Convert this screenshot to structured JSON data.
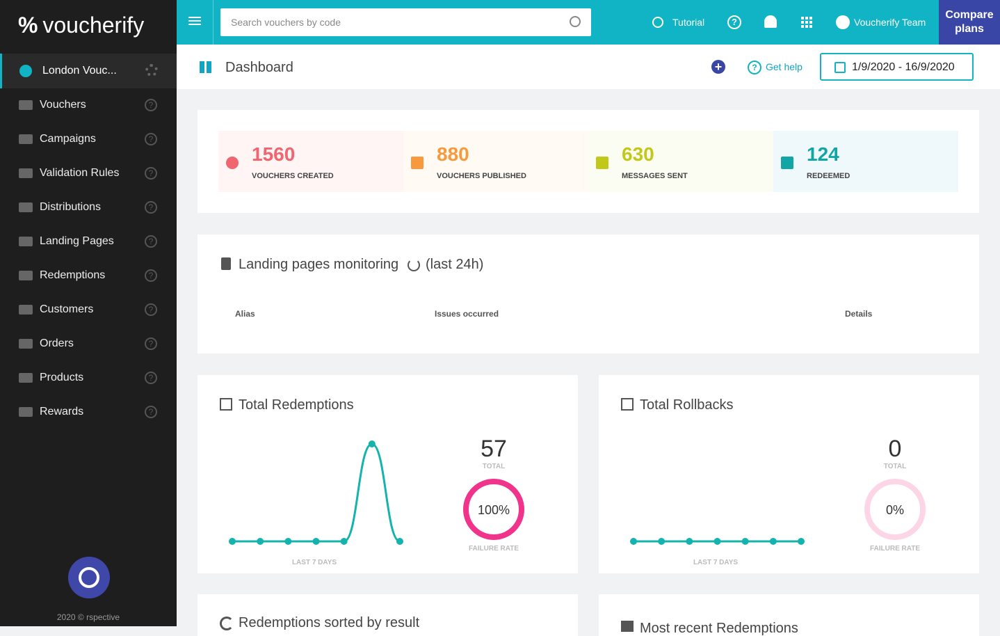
{
  "sidebar": {
    "brand": "voucherify",
    "project": "London Vouc...",
    "items": [
      "Vouchers",
      "Campaigns",
      "Validation Rules",
      "Distributions",
      "Landing Pages",
      "Redemptions",
      "Customers",
      "Orders",
      "Products",
      "Rewards"
    ],
    "footer": "2020 © rspective"
  },
  "topbar": {
    "search_placeholder": "Search vouchers by code",
    "tutorial": "Tutorial",
    "team": "Voucherify Team",
    "compare": "Compare plans"
  },
  "header": {
    "title": "Dashboard",
    "help": "Get help",
    "date_range": "1/9/2020 - 16/9/2020"
  },
  "stats": [
    {
      "value": "1560",
      "label": "VOUCHERS CREATED"
    },
    {
      "value": "880",
      "label": "VOUCHERS PUBLISHED"
    },
    {
      "value": "630",
      "label": "MESSAGES SENT"
    },
    {
      "value": "124",
      "label": "REDEEMED"
    }
  ],
  "monitoring": {
    "title": "Landing pages monitoring",
    "suffix": "(last 24h)",
    "columns": [
      "Alias",
      "Issues occurred",
      "Details"
    ]
  },
  "redemptions": {
    "title": "Total Redemptions",
    "total": "57",
    "total_label": "TOTAL",
    "failure_rate": {
      "value": 100,
      "label": "100%"
    },
    "failure_label": "FAILURE RATE",
    "period": "LAST 7 DAYS",
    "values": [
      0,
      0,
      0,
      0,
      0,
      57,
      0
    ]
  },
  "rollbacks": {
    "title": "Total Rollbacks",
    "total": "0",
    "total_label": "TOTAL",
    "failure_rate": {
      "value": 0,
      "label": "0%"
    },
    "failure_label": "FAILURE RATE",
    "period": "LAST 7 DAYS",
    "values": [
      0,
      0,
      0,
      0,
      0,
      0,
      0
    ]
  },
  "bottom": {
    "left_title": "Redemptions sorted by result",
    "right_title": "Most recent Redemptions"
  }
}
